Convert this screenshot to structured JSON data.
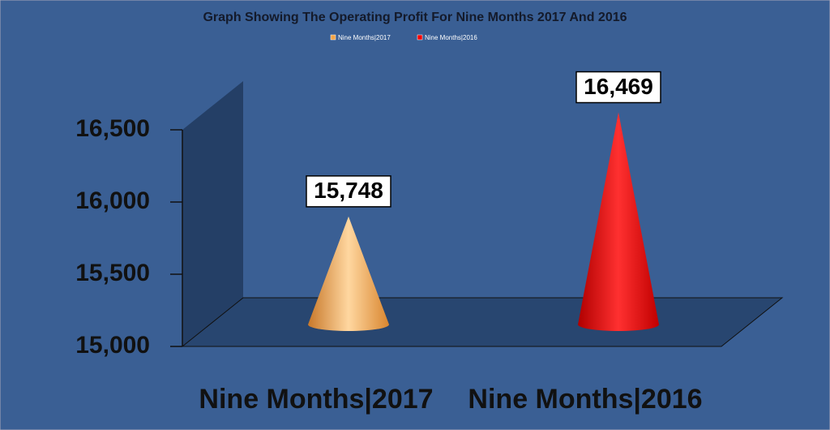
{
  "chart_data": {
    "type": "cone",
    "title": "Graph Showing The Operating Profit For Nine Months 2017 And 2016",
    "categories": [
      "Nine Months|2017",
      "Nine Months|2016"
    ],
    "values": [
      15748,
      16469
    ],
    "value_labels": [
      "15,748",
      "16,469"
    ],
    "colors": [
      "#f5a446",
      "#ff0000"
    ],
    "ylim": [
      15000,
      16500
    ],
    "yticks": [
      {
        "value": 15000,
        "label": "15,000"
      },
      {
        "value": 15500,
        "label": "15,500"
      },
      {
        "value": 16000,
        "label": "16,000"
      },
      {
        "value": 16500,
        "label": "16,500"
      }
    ],
    "legend": "top"
  }
}
